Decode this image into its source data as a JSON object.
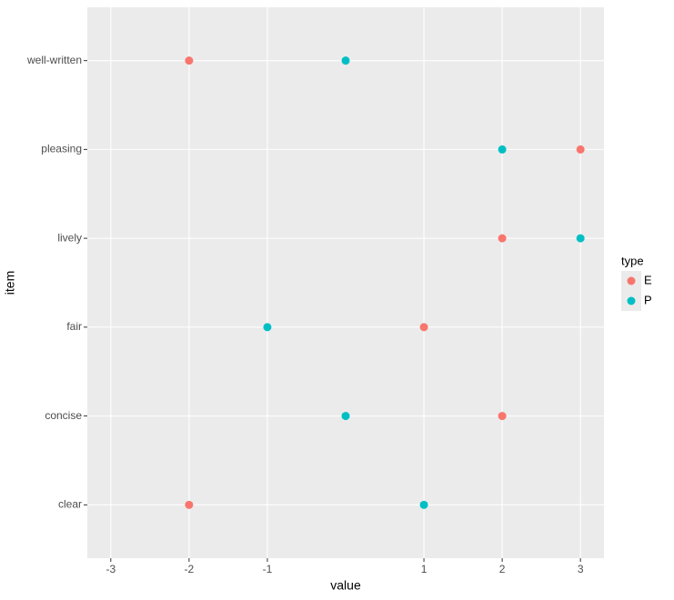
{
  "chart_data": {
    "type": "scatter",
    "x_label": "value",
    "y_label": "item",
    "categories": [
      "clear",
      "concise",
      "fair",
      "lively",
      "pleasing",
      "well-written"
    ],
    "series": [
      {
        "name": "E",
        "color": "#F8766D",
        "values": [
          -2,
          2,
          1,
          2,
          3,
          -2
        ]
      },
      {
        "name": "P",
        "color": "#00BFC4",
        "values": [
          1,
          0,
          -1,
          3,
          2,
          0
        ]
      }
    ],
    "xlim": [
      -3.3,
      3.3
    ],
    "xticks": [
      -3,
      -2,
      -1,
      1,
      2,
      3
    ],
    "grid": true,
    "legend_title": "type",
    "legend_position": "right"
  }
}
